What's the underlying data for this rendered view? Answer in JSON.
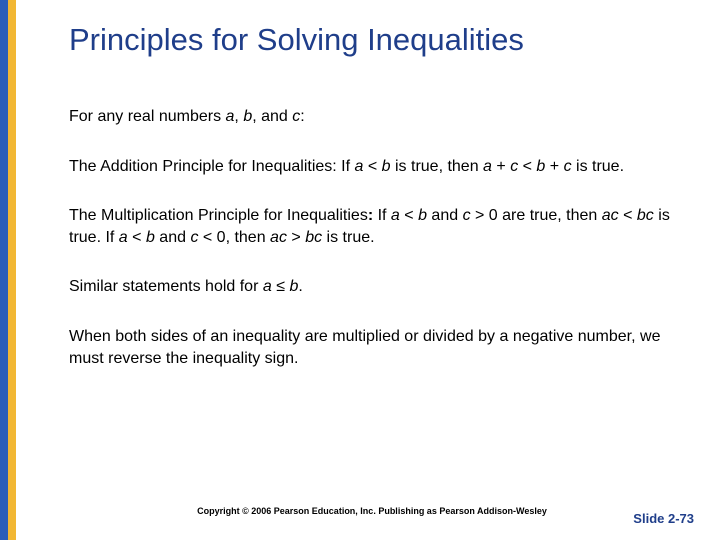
{
  "colors": {
    "border_blue": "#2b5db8",
    "border_yellow": "#f2b733",
    "title_color": "#1f3e8a",
    "text_color": "#000000",
    "background": "#ffffff"
  },
  "title": "Principles for Solving Inequalities",
  "intro": {
    "prefix": "For any real numbers ",
    "a": "a",
    "sep1": ", ",
    "b": "b",
    "sep2": ", and ",
    "c": "c",
    "suffix": ":"
  },
  "addition": {
    "label": "The Addition Principle for Inequalities:",
    "text1": "  If ",
    "a1": "a",
    "lt1": " < ",
    "b1": "b",
    "text2": " is true, then ",
    "a2": "a",
    "plus1": " + ",
    "c1": "c",
    "lt2": " < ",
    "b2": "b",
    "plus2": " + ",
    "c2": "c",
    "text3": " is true."
  },
  "multiplication": {
    "label": "The Multiplication Principle for Inequalities",
    "colon": ":",
    "text1": "  If ",
    "a1": "a",
    "lt1": " < ",
    "b1": "b",
    "and1": " and ",
    "c1": "c",
    "gt1": " > 0 are true, then ",
    "ac1": "ac",
    "lt2": " < ",
    "bc1": "bc",
    "text2": " is true. If ",
    "a2": "a",
    "lt3": " < ",
    "b2": "b",
    "and2": " and ",
    "c2": "c",
    "lt4": " < 0, then ",
    "ac2": "ac",
    "gt2": " > ",
    "bc2": "bc",
    "text3": " is true."
  },
  "similar": {
    "text1": "Similar statements hold for ",
    "a": "a",
    "le": " ≤ ",
    "b": "b",
    "text2": "."
  },
  "reverse": "When both sides of an inequality are multiplied or divided by a negative number, we must reverse the inequality sign.",
  "footer": {
    "copyright": "Copyright © 2006 Pearson Education, Inc.  Publishing as Pearson Addison-Wesley",
    "slide": "Slide 2-73"
  }
}
